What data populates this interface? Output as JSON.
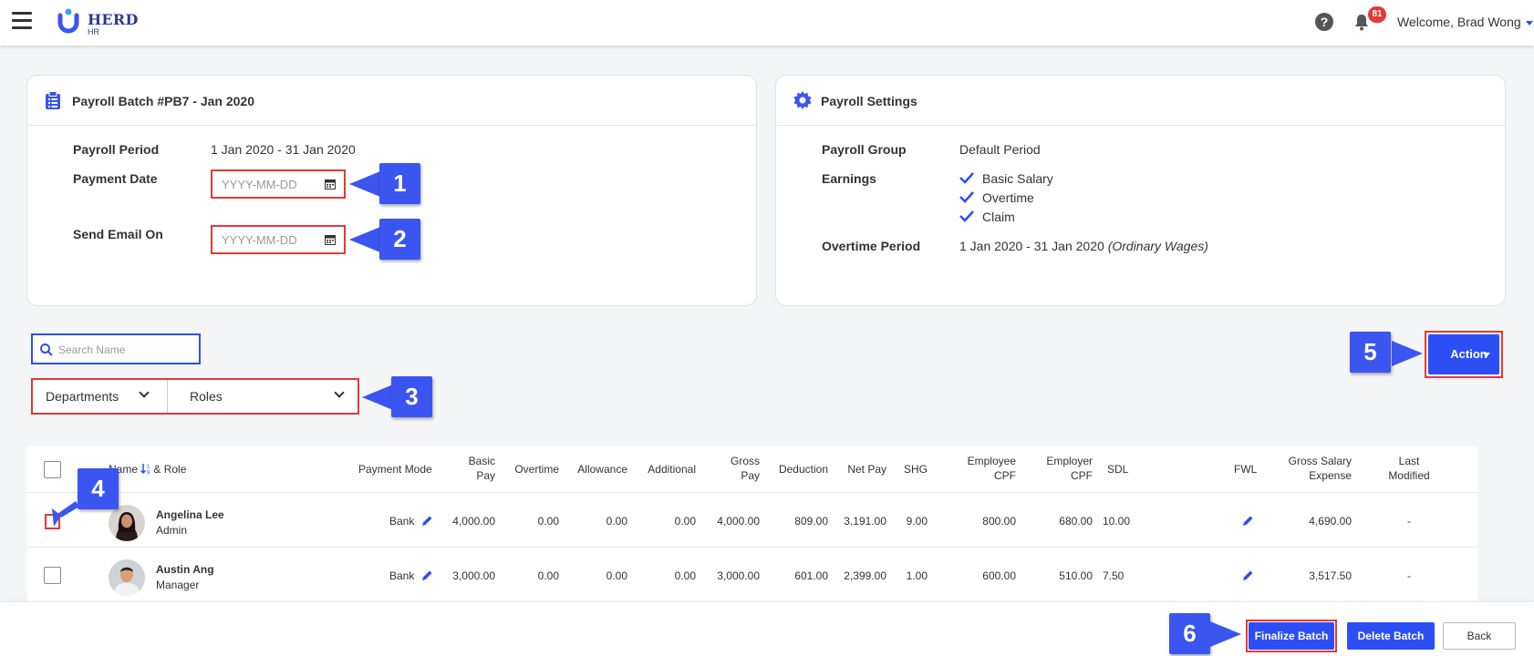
{
  "app": {
    "logo_text": "HERD",
    "logo_sub": "HR"
  },
  "topbar": {
    "help_symbol": "?",
    "notification_count": "81",
    "welcome": "Welcome, Brad Wong"
  },
  "batch_card": {
    "title": "Payroll Batch #PB7 - Jan 2020",
    "icon": "clipboard-icon",
    "payroll_period_label": "Payroll Period",
    "payroll_period_value": "1 Jan 2020 - 31 Jan 2020",
    "payment_date_label": "Payment Date",
    "payment_date_placeholder": "YYYY-MM-DD",
    "send_email_label": "Send Email On",
    "send_email_placeholder": "YYYY-MM-DD"
  },
  "settings_card": {
    "title": "Payroll Settings",
    "icon": "gear-icon",
    "payroll_group_label": "Payroll Group",
    "payroll_group_value": "Default Period",
    "earnings_label": "Earnings",
    "earnings": [
      "Basic Salary",
      "Overtime",
      "Claim"
    ],
    "overtime_period_label": "Overtime Period",
    "overtime_period_value": "1 Jan 2020 - 31 Jan 2020",
    "overtime_period_note": "(Ordinary Wages)"
  },
  "filters": {
    "search_placeholder": "Search Name",
    "departments": "Departments",
    "roles": "Roles"
  },
  "action_button": "Action",
  "callouts": [
    "1",
    "2",
    "3",
    "4",
    "5",
    "6"
  ],
  "table": {
    "headers": {
      "name": "Name",
      "name_role": "& Role",
      "payment_mode": "Payment Mode",
      "basic_pay": [
        "Basic",
        "Pay"
      ],
      "overtime": "Overtime",
      "allowance": "Allowance",
      "additional": "Additional",
      "gross_pay": [
        "Gross",
        "Pay"
      ],
      "deduction": "Deduction",
      "net_pay": "Net Pay",
      "shg": "SHG",
      "employee_cpf": [
        "Employee",
        "CPF"
      ],
      "employer_cpf": [
        "Employer",
        "CPF"
      ],
      "sdl": "SDL",
      "fwl": "FWL",
      "gross_salary_expense": [
        "Gross Salary",
        "Expense"
      ],
      "last_modified": [
        "Last",
        "Modified"
      ]
    },
    "rows": [
      {
        "name": "Angelina Lee",
        "role": "Admin",
        "payment_mode": "Bank",
        "basic_pay": "4,000.00",
        "overtime": "0.00",
        "allowance": "0.00",
        "additional": "0.00",
        "gross_pay": "4,000.00",
        "deduction": "809.00",
        "net_pay": "3,191.00",
        "shg": "9.00",
        "employee_cpf": "800.00",
        "employer_cpf": "680.00",
        "sdl": "10.00",
        "gross_salary_expense": "4,690.00",
        "last_modified": "-"
      },
      {
        "name": "Austin Ang",
        "role": "Manager",
        "payment_mode": "Bank",
        "basic_pay": "3,000.00",
        "overtime": "0.00",
        "allowance": "0.00",
        "additional": "0.00",
        "gross_pay": "3,000.00",
        "deduction": "601.00",
        "net_pay": "2,399.00",
        "shg": "1.00",
        "employee_cpf": "600.00",
        "employer_cpf": "510.00",
        "sdl": "7.50",
        "gross_salary_expense": "3,517.50",
        "last_modified": "-"
      }
    ]
  },
  "footer": {
    "finalize": "Finalize Batch",
    "delete": "Delete Batch",
    "back": "Back"
  },
  "colors": {
    "primary": "#2d4ef5",
    "highlight": "#e53935",
    "callout": "#3b55f0"
  }
}
